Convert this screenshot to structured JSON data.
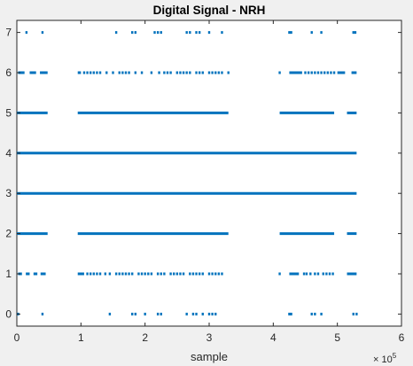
{
  "chart_data": {
    "type": "scatter",
    "title": "Digital Signal - NRH",
    "xlabel": "sample",
    "ylabel": "",
    "xlim": [
      0,
      600000
    ],
    "ylim": [
      -0.3,
      7.3
    ],
    "x_tick_values": [
      0,
      100000,
      200000,
      300000,
      400000,
      500000,
      600000
    ],
    "x_tick_labels": [
      "0",
      "1",
      "2",
      "3",
      "4",
      "5",
      "6"
    ],
    "x_exponent_base": "× 10",
    "x_exponent_power": "5",
    "y_tick_values": [
      0,
      1,
      2,
      3,
      4,
      5,
      6,
      7
    ],
    "y_tick_labels": [
      "0",
      "1",
      "2",
      "3",
      "4",
      "5",
      "6",
      "7"
    ],
    "grid": false,
    "legend": "none",
    "marker_color": "#0072BD",
    "series": [
      {
        "level": 7,
        "segments": [],
        "points": [
          15000,
          40000,
          155000,
          180000,
          185000,
          215000,
          220000,
          225000,
          265000,
          270000,
          280000,
          285000,
          300000,
          320000,
          425000,
          428000,
          460000,
          475000,
          525000,
          528000
        ]
      },
      {
        "level": 6,
        "segments": [
          [
            2000,
            12000
          ],
          [
            20000,
            30000
          ],
          [
            36000,
            48000
          ],
          [
            95000,
            100000
          ],
          [
            425000,
            445000
          ],
          [
            500000,
            512000
          ],
          [
            522000,
            530000
          ]
        ],
        "points": [
          105000,
          110000,
          115000,
          120000,
          125000,
          130000,
          140000,
          150000,
          160000,
          165000,
          170000,
          175000,
          185000,
          195000,
          210000,
          222000,
          230000,
          235000,
          240000,
          250000,
          255000,
          260000,
          265000,
          270000,
          280000,
          285000,
          290000,
          300000,
          305000,
          310000,
          315000,
          320000,
          330000,
          410000,
          450000,
          455000,
          460000,
          465000,
          470000,
          475000,
          480000,
          485000,
          490000,
          495000
        ]
      },
      {
        "level": 5,
        "segments": [
          [
            0,
            48000
          ],
          [
            95000,
            330000
          ],
          [
            410000,
            495000
          ],
          [
            515000,
            530000
          ]
        ],
        "points": []
      },
      {
        "level": 4,
        "segments": [
          [
            0,
            530000
          ]
        ],
        "points": []
      },
      {
        "level": 3,
        "segments": [
          [
            0,
            530000
          ]
        ],
        "points": []
      },
      {
        "level": 2,
        "segments": [
          [
            0,
            48000
          ],
          [
            95000,
            330000
          ],
          [
            410000,
            495000
          ],
          [
            515000,
            530000
          ]
        ],
        "points": []
      },
      {
        "level": 1,
        "segments": [
          [
            2000,
            8000
          ],
          [
            14000,
            20000
          ],
          [
            26000,
            32000
          ],
          [
            37000,
            45000
          ],
          [
            95000,
            105000
          ],
          [
            425000,
            440000
          ],
          [
            515000,
            530000
          ]
        ],
        "points": [
          110000,
          115000,
          120000,
          125000,
          130000,
          138000,
          145000,
          155000,
          160000,
          165000,
          170000,
          175000,
          180000,
          190000,
          195000,
          200000,
          205000,
          210000,
          220000,
          225000,
          230000,
          240000,
          245000,
          250000,
          255000,
          260000,
          270000,
          275000,
          280000,
          285000,
          290000,
          300000,
          305000,
          310000,
          315000,
          320000,
          410000,
          448000,
          452000,
          458000,
          465000,
          470000,
          478000,
          483000,
          488000,
          493000
        ]
      },
      {
        "level": 0,
        "segments": [],
        "points": [
          2000,
          40000,
          145000,
          180000,
          185000,
          200000,
          220000,
          225000,
          265000,
          275000,
          280000,
          290000,
          300000,
          305000,
          310000,
          425000,
          428000,
          460000,
          465000,
          475000,
          525000,
          530000
        ]
      }
    ]
  }
}
